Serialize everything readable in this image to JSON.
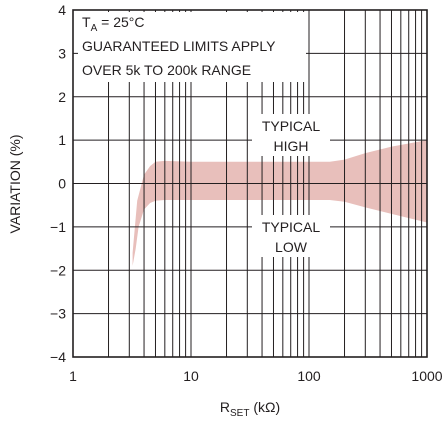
{
  "chart_data": {
    "type": "area",
    "title": "",
    "xlabel": {
      "main": "R",
      "sub": "SET",
      "unit": " (kΩ)"
    },
    "ylabel": "VARIATION (%)",
    "x_scale": "log",
    "xlim": [
      1,
      1000
    ],
    "ylim": [
      -4,
      4
    ],
    "grid": true,
    "x_ticks": [
      1,
      10,
      100,
      1000
    ],
    "x_tick_labels": [
      "1",
      "10",
      "100",
      "1000"
    ],
    "y_ticks": [
      -4,
      -3,
      -2,
      -1,
      0,
      1,
      2,
      3,
      4
    ],
    "y_tick_labels": [
      "−4",
      "−3",
      "−2",
      "−1",
      "0",
      "1",
      "2",
      "3",
      "4"
    ],
    "band_color": "#e8bfbb",
    "series": [
      {
        "name": "TYPICAL HIGH",
        "x": [
          3.2,
          3.5,
          4,
          4.5,
          5,
          6,
          10,
          20,
          50,
          100,
          150,
          200,
          300,
          500,
          1000
        ],
        "values": [
          -1.6,
          -0.4,
          0.2,
          0.4,
          0.5,
          0.52,
          0.5,
          0.5,
          0.5,
          0.5,
          0.5,
          0.55,
          0.7,
          0.85,
          1.0
        ]
      },
      {
        "name": "TYPICAL LOW",
        "x": [
          3.2,
          3.4,
          3.6,
          4,
          4.5,
          5,
          6,
          10,
          20,
          50,
          100,
          150,
          200,
          300,
          500,
          1000
        ],
        "values": [
          -1.9,
          -1.5,
          -1.0,
          -0.6,
          -0.45,
          -0.4,
          -0.38,
          -0.38,
          -0.38,
          -0.38,
          -0.38,
          -0.38,
          -0.42,
          -0.55,
          -0.7,
          -0.9
        ]
      }
    ],
    "annotations": [
      {
        "id": "conditions",
        "lines": [
          "T",
          "A",
          " = 25°C",
          "GUARANTEED LIMITS APPLY",
          "OVER 5k TO 200k RANGE"
        ]
      },
      {
        "id": "typical-high",
        "lines": [
          "TYPICAL",
          "HIGH"
        ]
      },
      {
        "id": "typical-low",
        "lines": [
          "TYPICAL",
          "LOW"
        ]
      }
    ]
  }
}
